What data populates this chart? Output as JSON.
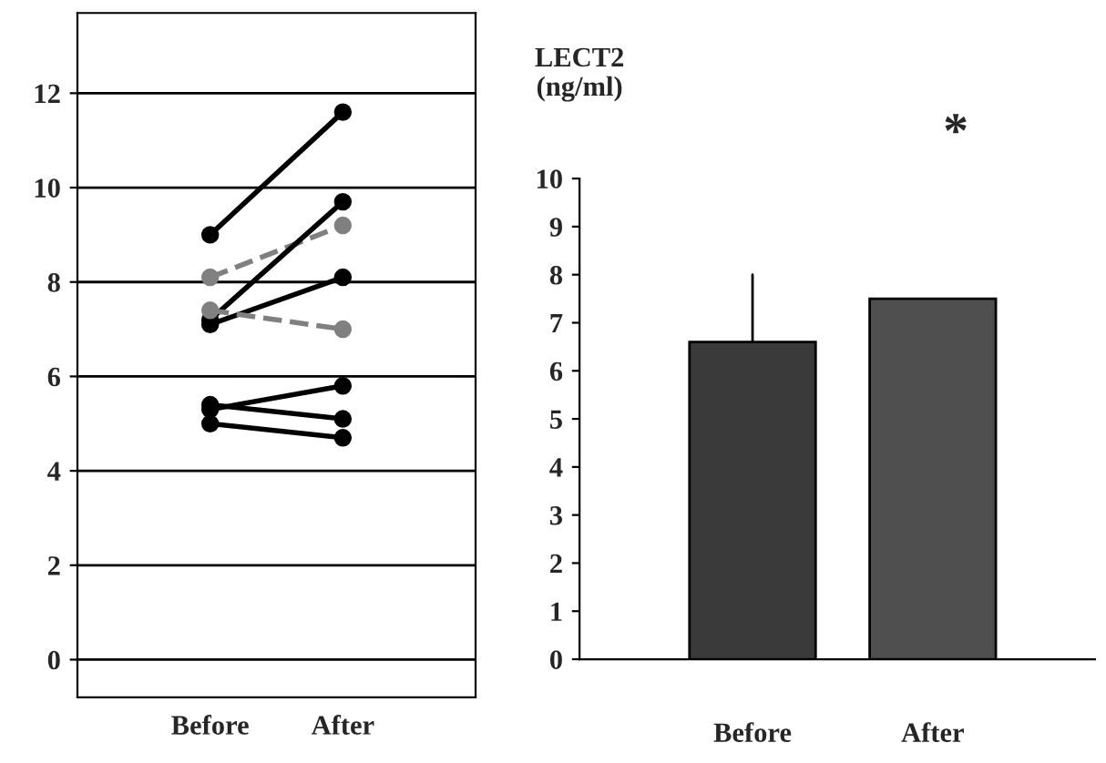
{
  "chart_data": [
    {
      "type": "line",
      "categories": [
        "Before",
        "After"
      ],
      "ylim": [
        -0.8,
        13.7
      ],
      "yticks": [
        0,
        2,
        4,
        6,
        8,
        10,
        12
      ],
      "grid": "y",
      "marker": "circle",
      "series": [
        {
          "color": "#000000",
          "line_style": "solid",
          "values": [
            9.0,
            11.6
          ]
        },
        {
          "color": "#808080",
          "line_style": "dashed",
          "values": [
            8.1,
            9.2
          ]
        },
        {
          "color": "#000000",
          "line_style": "solid",
          "values": [
            7.2,
            9.7
          ]
        },
        {
          "color": "#000000",
          "line_style": "solid",
          "values": [
            7.1,
            8.1
          ]
        },
        {
          "color": "#808080",
          "line_style": "dashed",
          "values": [
            7.4,
            7.0
          ]
        },
        {
          "color": "#000000",
          "line_style": "solid",
          "values": [
            5.3,
            5.8
          ]
        },
        {
          "color": "#000000",
          "line_style": "solid",
          "values": [
            5.4,
            5.1
          ]
        },
        {
          "color": "#000000",
          "line_style": "solid",
          "values": [
            5.0,
            4.7
          ]
        }
      ]
    },
    {
      "type": "bar",
      "categories": [
        "Before",
        "After"
      ],
      "values": [
        6.6,
        7.5
      ],
      "colors": [
        "#3a3a3a",
        "#4f4f4f"
      ],
      "errors": [
        [
          6.6,
          8.0
        ],
        null
      ],
      "ylabel": "LECT2\n(ng/ml)",
      "ylim": [
        0,
        10
      ],
      "yticks": [
        0,
        1,
        2,
        3,
        4,
        5,
        6,
        7,
        8,
        9,
        10
      ],
      "annotations": [
        "*"
      ]
    }
  ]
}
